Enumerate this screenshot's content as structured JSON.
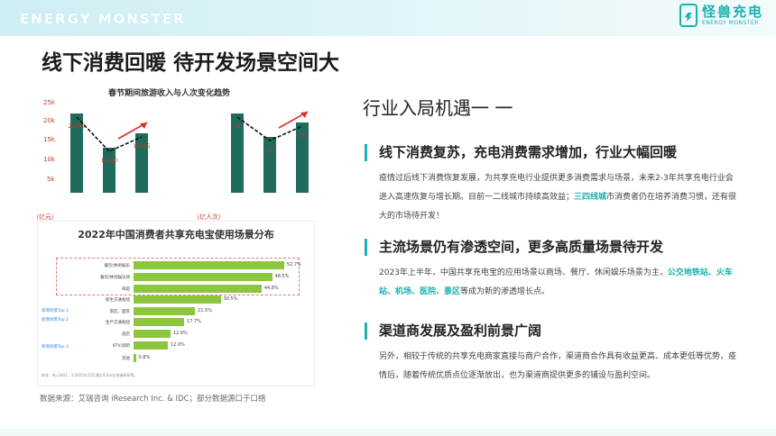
{
  "brand": {
    "left_text": "ENERGY MONSTER",
    "logo_cn": "怪兽充电",
    "logo_en": "ENERGY MONSTER"
  },
  "page": {
    "title": "线下消费回暖 待开发场景空间大"
  },
  "chart1": {
    "title": "春节期间旅游收入与人次变化趋势",
    "yticks": [
      "25k",
      "20k",
      "15k",
      "10k",
      "5k"
    ],
    "unit_left": "（亿元）",
    "unit_right": "（亿人次）"
  },
  "chart_data": [
    {
      "type": "bar",
      "title": "春节期间旅游收入与人次变化趋势",
      "categories": [
        "",
        "",
        ""
      ],
      "values": [
        22,
        12.5,
        16.5
      ],
      "data_labels": [
        "22005",
        "12410",
        "16515"
      ],
      "ylim": [
        0,
        25
      ],
      "ylabel": "（亿元）"
    },
    {
      "type": "bar",
      "categories": [
        "",
        "",
        ""
      ],
      "values": [
        22,
        15.5,
        19.5
      ],
      "data_labels": [
        "18",
        "13",
        "16"
      ],
      "ylim": [
        0,
        25
      ],
      "ylabel": "（亿人次）"
    },
    {
      "type": "bar",
      "title": "2022年中国消费者共享充电宝使用场景分布",
      "categories": [
        "餐饮/休闲娱乐",
        "餐饮/休闲娱乐场",
        "商超",
        "新生交通枢纽",
        "景区、医院",
        "生产交通枢纽",
        "酒店",
        "KTV/酒吧",
        "其他"
      ],
      "values": [
        52.7,
        48.5,
        44.8,
        30.5,
        21.5,
        17.7,
        12.9,
        12.0,
        0.8
      ],
      "value_labels": [
        "52.7%",
        "48.5%",
        "44.8%",
        "30.5%",
        "21.5%",
        "17.7%",
        "12.9%",
        "12.0%",
        "0.8%"
      ],
      "xlim": [
        0,
        60
      ]
    }
  ],
  "panel": {
    "title": "2022年中国消费者共享充电宝使用场景分布",
    "bars": [
      {
        "label": "餐饮/休闲娱乐",
        "value_label": "52.7%",
        "value": 52.7
      },
      {
        "label": "餐饮/休闲娱乐场",
        "value_label": "48.5%",
        "value": 48.5
      },
      {
        "label": "商超",
        "value_label": "44.8%",
        "value": 44.8
      },
      {
        "label": "新生交通枢纽",
        "value_label": "30.5%",
        "value": 30.5
      },
      {
        "label": "景区、医院",
        "value_label": "21.5%",
        "value": 21.5
      },
      {
        "label": "生产交通枢纽",
        "value_label": "17.7%",
        "value": 17.7
      },
      {
        "label": "酒店",
        "value_label": "12.9%",
        "value": 12.9
      },
      {
        "label": "KTV/酒吧",
        "value_label": "12.0%",
        "value": 12.0
      },
      {
        "label": "其他",
        "value_label": "0.8%",
        "value": 0.8
      }
    ],
    "blue_tags": [
      "新增场景Top 1",
      "新增场景Top 2",
      "新增场景Top 3"
    ],
    "note": "样本：N=1001，于2022年12月通过iClick在线调研获得。"
  },
  "source": "数据来源：艾瑞咨询 iResearch Inc. & IDC；部分数据源口于口络",
  "right": {
    "heading": "行业入局机遇一 一",
    "blocks": [
      {
        "title": "线下消费复苏，充电消费需求增加，行业大幅回暖",
        "body_a": "疫情过后线下消费恢复发展，为共享充电行业提供更多消费需求与场景，未来2-3年共享充电行业会进入高速恢复与增长期。目前一二线城市持续高效益；",
        "body_hl": "三四线城",
        "body_b": "市消费者仍在培养消费习惯，还有很大的市场待开发！"
      },
      {
        "title": "主流场景仍有渗透空间，更多高质量场景待开发",
        "body_a": "2023年上半年，中国共享充电宝的应用场景以商场、餐厅、休闲娱乐场景为主，",
        "body_hl": "公交地铁站、火车站、机场、医院、景区",
        "body_b": "等成为新的渗透增长点。"
      },
      {
        "title": "渠道商发展及盈利前景广阔",
        "body_a": "另外，相较于传统的共享充电商家直接与商户合作，渠道商合作具有收益更高、成本更低等优势，疫情后，随着传统优质点位逐渐放出，也为渠道商提供更多的铺设与盈利空间。",
        "body_hl": "",
        "body_b": ""
      }
    ]
  },
  "colors": {
    "accent": "#1ab1b1",
    "bar_dark": "#1f6b5c",
    "bar_green": "#8cc63f",
    "trend_red": "#d9302c"
  }
}
